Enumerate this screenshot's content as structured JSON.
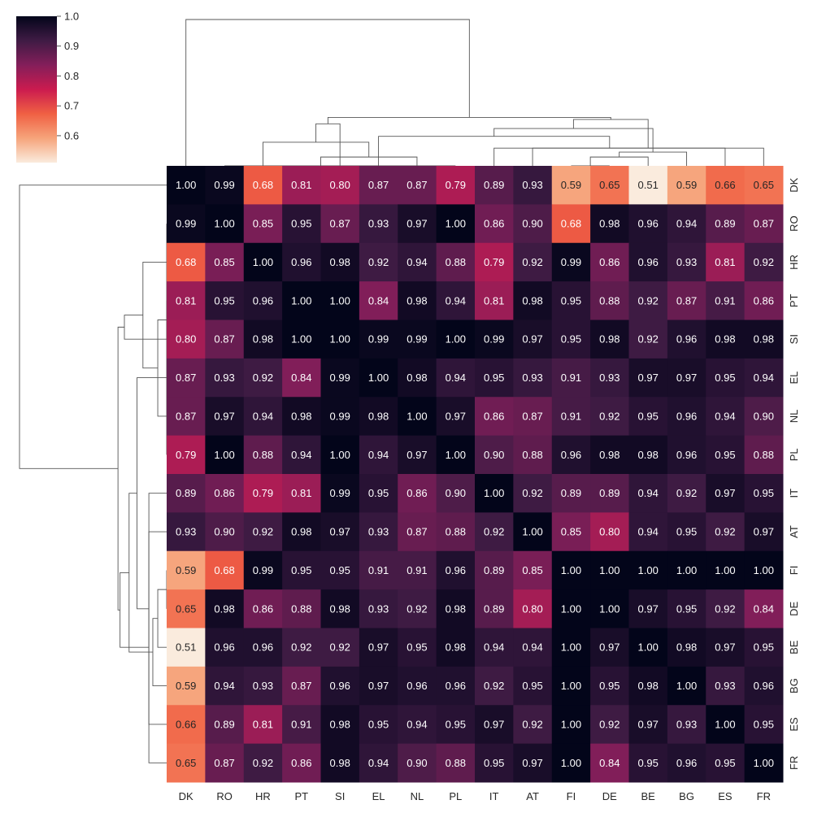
{
  "chart_data": {
    "type": "heatmap",
    "subtype": "clustermap",
    "title": "",
    "xlabel": "",
    "ylabel": "",
    "row_labels": [
      "DK",
      "RO",
      "HR",
      "PT",
      "SI",
      "EL",
      "NL",
      "PL",
      "IT",
      "AT",
      "FI",
      "DE",
      "BE",
      "BG",
      "ES",
      "FR"
    ],
    "col_labels": [
      "DK",
      "RO",
      "HR",
      "PT",
      "SI",
      "EL",
      "NL",
      "PL",
      "IT",
      "AT",
      "FI",
      "DE",
      "BE",
      "BG",
      "ES",
      "FR"
    ],
    "values": [
      [
        1.0,
        0.99,
        0.68,
        0.81,
        0.8,
        0.87,
        0.87,
        0.79,
        0.89,
        0.93,
        0.59,
        0.65,
        0.51,
        0.59,
        0.66,
        0.65
      ],
      [
        0.99,
        1.0,
        0.85,
        0.95,
        0.87,
        0.93,
        0.97,
        1.0,
        0.86,
        0.9,
        0.68,
        0.98,
        0.96,
        0.94,
        0.89,
        0.87
      ],
      [
        0.68,
        0.85,
        1.0,
        0.96,
        0.98,
        0.92,
        0.94,
        0.88,
        0.79,
        0.92,
        0.99,
        0.86,
        0.96,
        0.93,
        0.81,
        0.92
      ],
      [
        0.81,
        0.95,
        0.96,
        1.0,
        1.0,
        0.84,
        0.98,
        0.94,
        0.81,
        0.98,
        0.95,
        0.88,
        0.92,
        0.87,
        0.91,
        0.86
      ],
      [
        0.8,
        0.87,
        0.98,
        1.0,
        1.0,
        0.99,
        0.99,
        1.0,
        0.99,
        0.97,
        0.95,
        0.98,
        0.92,
        0.96,
        0.98,
        0.98
      ],
      [
        0.87,
        0.93,
        0.92,
        0.84,
        0.99,
        1.0,
        0.98,
        0.94,
        0.95,
        0.93,
        0.91,
        0.93,
        0.97,
        0.97,
        0.95,
        0.94
      ],
      [
        0.87,
        0.97,
        0.94,
        0.98,
        0.99,
        0.98,
        1.0,
        0.97,
        0.86,
        0.87,
        0.91,
        0.92,
        0.95,
        0.96,
        0.94,
        0.9
      ],
      [
        0.79,
        1.0,
        0.88,
        0.94,
        1.0,
        0.94,
        0.97,
        1.0,
        0.9,
        0.88,
        0.96,
        0.98,
        0.98,
        0.96,
        0.95,
        0.88
      ],
      [
        0.89,
        0.86,
        0.79,
        0.81,
        0.99,
        0.95,
        0.86,
        0.9,
        1.0,
        0.92,
        0.89,
        0.89,
        0.94,
        0.92,
        0.97,
        0.95
      ],
      [
        0.93,
        0.9,
        0.92,
        0.98,
        0.97,
        0.93,
        0.87,
        0.88,
        0.92,
        1.0,
        0.85,
        0.8,
        0.94,
        0.95,
        0.92,
        0.97
      ],
      [
        0.59,
        0.68,
        0.99,
        0.95,
        0.95,
        0.91,
        0.91,
        0.96,
        0.89,
        0.85,
        1.0,
        1.0,
        1.0,
        1.0,
        1.0,
        1.0
      ],
      [
        0.65,
        0.98,
        0.86,
        0.88,
        0.98,
        0.93,
        0.92,
        0.98,
        0.89,
        0.8,
        1.0,
        1.0,
        0.97,
        0.95,
        0.92,
        0.84
      ],
      [
        0.51,
        0.96,
        0.96,
        0.92,
        0.92,
        0.97,
        0.95,
        0.98,
        0.94,
        0.94,
        1.0,
        0.97,
        1.0,
        0.98,
        0.97,
        0.95
      ],
      [
        0.59,
        0.94,
        0.93,
        0.87,
        0.96,
        0.97,
        0.96,
        0.96,
        0.92,
        0.95,
        1.0,
        0.95,
        0.98,
        1.0,
        0.93,
        0.96
      ],
      [
        0.66,
        0.89,
        0.81,
        0.91,
        0.98,
        0.95,
        0.94,
        0.95,
        0.97,
        0.92,
        1.0,
        0.92,
        0.97,
        0.93,
        1.0,
        0.95
      ],
      [
        0.65,
        0.87,
        0.92,
        0.86,
        0.98,
        0.94,
        0.9,
        0.88,
        0.95,
        0.97,
        1.0,
        0.84,
        0.95,
        0.96,
        0.95,
        1.0
      ]
    ],
    "value_format": "0.00",
    "colormap": "rocket_r",
    "vmin": 0.51,
    "vmax": 1.0,
    "colorbar": {
      "ticks": [
        0.6,
        0.7,
        0.8,
        0.9,
        1.0
      ],
      "tick_labels": [
        "0.6",
        "0.7",
        "0.8",
        "0.9",
        "1.0"
      ],
      "placement": "top-left"
    },
    "row_dendrogram": {
      "placement": "left"
    },
    "col_dendrogram": {
      "placement": "top"
    }
  },
  "colors": {
    "colormap_stops": [
      "#faebdd",
      "#f6a47b",
      "#f06043",
      "#cb1b4f",
      "#841e5a",
      "#3f1b44",
      "#03051a"
    ],
    "text_light": "#ffffff",
    "text_dark": "#262626",
    "dendrogram_line": "#555555"
  }
}
